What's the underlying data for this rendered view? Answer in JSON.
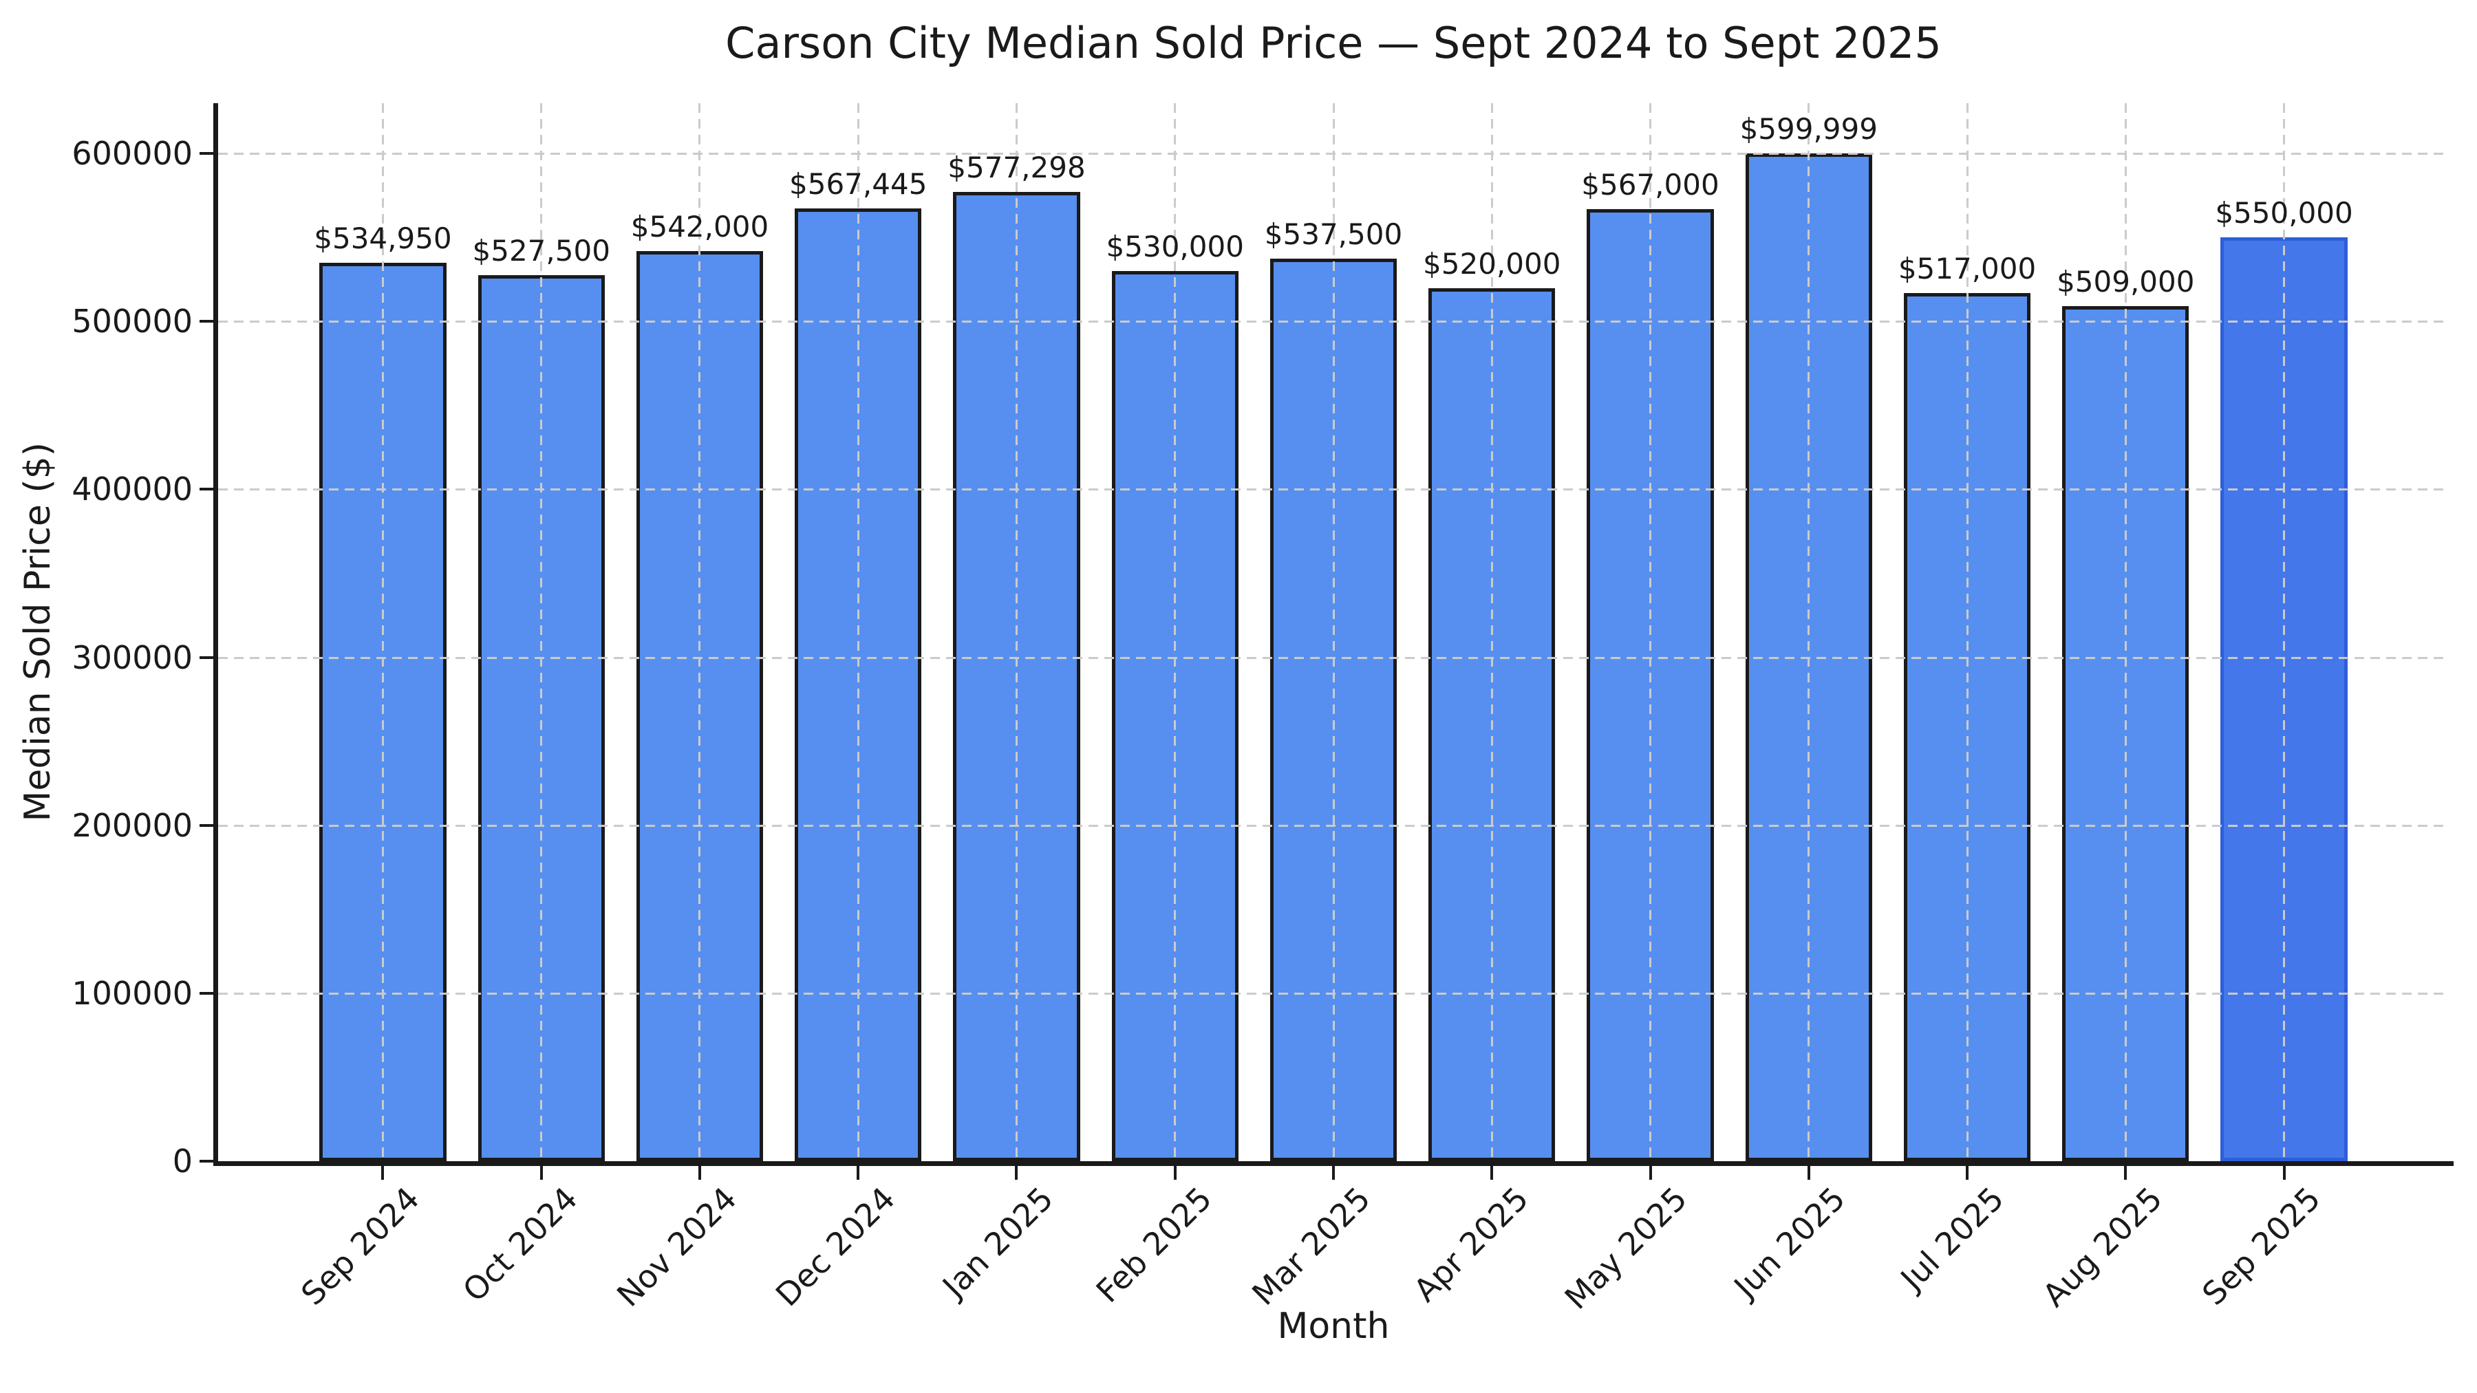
{
  "title": "Carson City Median Sold Price — Sept 2024 to Sept 2025",
  "chart_data": {
    "type": "bar",
    "title": "Carson City Median Sold Price — Sept 2024 to Sept 2025",
    "xlabel": "Month",
    "ylabel": "Median Sold Price ($)",
    "categories": [
      "Sep 2024",
      "Oct 2024",
      "Nov 2024",
      "Dec 2024",
      "Jan 2025",
      "Feb 2025",
      "Mar 2025",
      "Apr 2025",
      "May 2025",
      "Jun 2025",
      "Jul 2025",
      "Aug 2025",
      "Sep 2025"
    ],
    "values": [
      534950,
      527500,
      542000,
      567445,
      577298,
      530000,
      537500,
      520000,
      567000,
      599999,
      517000,
      509000,
      550000
    ],
    "bar_labels": [
      "$534,950",
      "$527,500",
      "$542,000",
      "$567,445",
      "$577,298",
      "$530,000",
      "$537,500",
      "$520,000",
      "$567,000",
      "$599,999",
      "$517,000",
      "$509,000",
      "$550,000"
    ],
    "yticks": [
      0,
      100000,
      200000,
      300000,
      400000,
      500000,
      600000
    ],
    "ytick_labels": [
      "0",
      "100000",
      "200000",
      "300000",
      "400000",
      "500000",
      "600000"
    ],
    "ylim": [
      0,
      630000
    ],
    "grid": "dashed gridlines, horizontal and vertical, drawn over bars",
    "legend": "none",
    "highlight_index": 12,
    "colors": {
      "bar_fill": "#578FF0",
      "bar_edge": "#1A1A1A",
      "highlight_fill": "#4377EA",
      "highlight_edge": "#2E5FD9",
      "grid": "#CBCBCB",
      "text": "#1A1A1A",
      "background": "#FFFFFF"
    }
  }
}
